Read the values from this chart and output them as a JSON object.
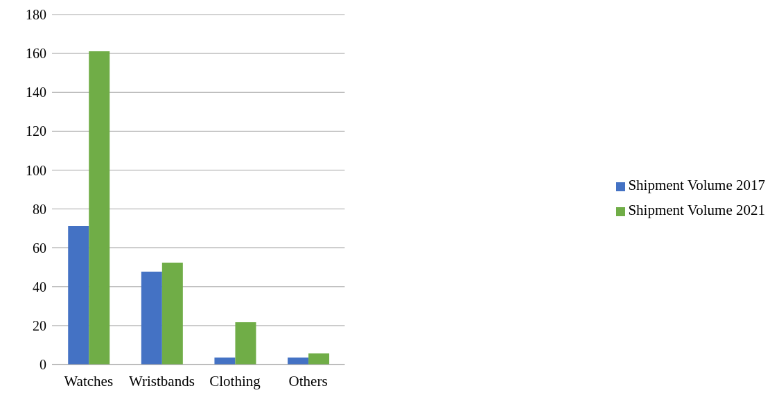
{
  "chart_data": {
    "type": "bar",
    "categories": [
      "Watches",
      "Wristbands",
      "Clothing",
      "Others"
    ],
    "series": [
      {
        "name": "Shipment Volume 2017",
        "color": "#4472c4",
        "values": [
          71.3,
          47.8,
          3.6,
          3.6
        ]
      },
      {
        "name": "Shipment Volume 2021",
        "color": "#70ad47",
        "values": [
          161.1,
          52.4,
          21.7,
          5.7
        ]
      }
    ],
    "ylim": [
      0,
      180
    ],
    "yticks": [
      0,
      20,
      40,
      60,
      80,
      100,
      120,
      140,
      160,
      180
    ],
    "grid": "y",
    "legend": "right"
  }
}
